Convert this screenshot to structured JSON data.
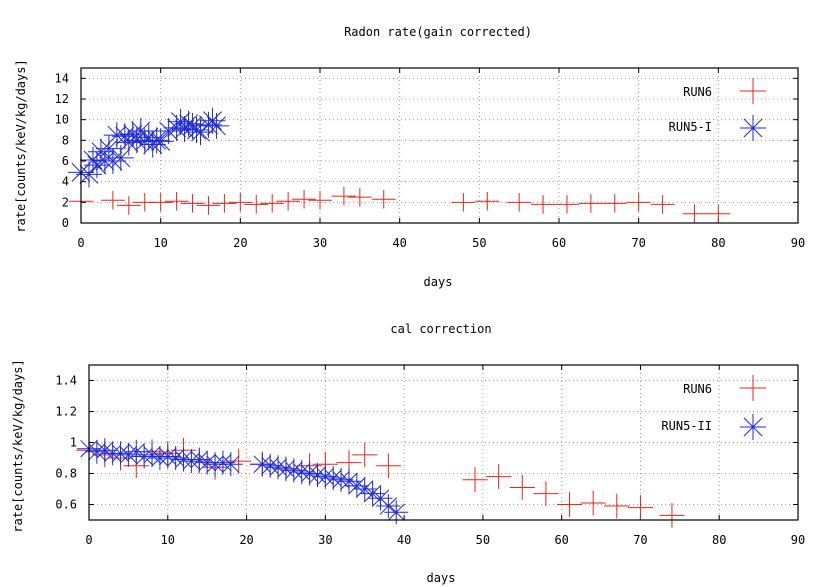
{
  "colors": {
    "run6": "#e8261e",
    "run5": "#1f2bd6",
    "axis": "#000000",
    "grid": "#9a9a9a"
  },
  "chart_data": [
    {
      "type": "scatter",
      "title": "Radon rate(gain corrected)",
      "xlabel": "days",
      "ylabel": "rate[counts/keV/kg/days]",
      "xlim": [
        0,
        90
      ],
      "ylim": [
        0,
        15
      ],
      "xticks": [
        0,
        10,
        20,
        30,
        40,
        50,
        60,
        70,
        80,
        90
      ],
      "yticks": [
        0,
        2,
        4,
        6,
        8,
        10,
        12,
        14
      ],
      "grid": true,
      "legend": "top-right",
      "series": [
        {
          "name": "RUN6",
          "marker": "plus",
          "x": [
            0,
            4,
            6,
            8,
            10,
            12,
            14,
            16,
            18,
            20,
            22,
            24,
            26,
            28,
            30,
            33,
            35,
            38,
            48,
            51,
            55,
            58,
            61,
            64,
            67,
            70,
            73,
            77,
            80
          ],
          "y": [
            2.1,
            2.2,
            1.7,
            2.0,
            2.0,
            2.1,
            1.9,
            1.7,
            1.9,
            2.0,
            1.8,
            1.9,
            2.1,
            2.3,
            2.2,
            2.6,
            2.5,
            2.3,
            2.0,
            2.1,
            2.0,
            1.8,
            1.8,
            1.9,
            1.9,
            2.0,
            1.8,
            0.9,
            0.9
          ],
          "xerr": 1.5,
          "yerr": 0.9
        },
        {
          "name": "RUN5-I",
          "marker": "star",
          "x": [
            0,
            1,
            1.5,
            2,
            2.5,
            3,
            3.5,
            4,
            4.5,
            5,
            5.5,
            6,
            6.5,
            7,
            7.5,
            8,
            8.5,
            9,
            9.5,
            10,
            11,
            12,
            12.5,
            13,
            13.5,
            14,
            14.5,
            15,
            16,
            16.5,
            17
          ],
          "y": [
            4.9,
            4.7,
            6.1,
            5.6,
            6.9,
            6.0,
            7.2,
            6.0,
            8.5,
            6.3,
            8.4,
            7.8,
            8.6,
            8.0,
            8.9,
            7.9,
            8.3,
            7.6,
            8.0,
            7.9,
            8.9,
            9.2,
            9.8,
            9.1,
            9.6,
            9.4,
            9.0,
            8.8,
            9.5,
            9.9,
            9.4
          ]
        }
      ]
    },
    {
      "type": "scatter",
      "title": "cal correction",
      "xlabel": "days",
      "ylabel": "rate[counts/keV/kg/days]",
      "xlim": [
        0,
        90
      ],
      "ylim": [
        0.5,
        1.5
      ],
      "xticks": [
        0,
        10,
        20,
        30,
        40,
        50,
        60,
        70,
        80,
        90
      ],
      "yticks": [
        0.6,
        0.8,
        1,
        1.2,
        1.4
      ],
      "grid": true,
      "legend": "top-right",
      "series": [
        {
          "name": "RUN6",
          "marker": "plus",
          "x": [
            0,
            2,
            4,
            6,
            8,
            10,
            12,
            14,
            16,
            19,
            22,
            25,
            28,
            30,
            33,
            35,
            38,
            49,
            52,
            55,
            58,
            61,
            64,
            67,
            70,
            74
          ],
          "y": [
            0.95,
            0.92,
            0.9,
            0.85,
            0.94,
            0.93,
            0.95,
            0.88,
            0.84,
            0.88,
            0.86,
            0.83,
            0.85,
            0.86,
            0.87,
            0.92,
            0.85,
            0.76,
            0.78,
            0.71,
            0.67,
            0.6,
            0.61,
            0.59,
            0.58,
            0.53
          ],
          "xerr": 1.6,
          "yerr": 0.08
        },
        {
          "name": "RUN5-II",
          "marker": "star",
          "x": [
            0,
            1,
            2,
            3,
            4,
            5,
            6,
            7,
            8,
            9,
            10,
            11,
            12,
            13,
            14,
            15,
            16,
            17,
            18,
            22,
            23,
            24,
            25,
            26,
            27,
            28,
            29,
            30,
            31,
            32,
            33,
            34,
            35,
            36,
            37,
            38,
            39
          ],
          "y": [
            0.96,
            0.94,
            0.95,
            0.93,
            0.93,
            0.92,
            0.94,
            0.91,
            0.92,
            0.9,
            0.91,
            0.9,
            0.89,
            0.88,
            0.89,
            0.87,
            0.86,
            0.87,
            0.86,
            0.86,
            0.85,
            0.84,
            0.83,
            0.82,
            0.81,
            0.8,
            0.79,
            0.78,
            0.77,
            0.76,
            0.75,
            0.72,
            0.7,
            0.67,
            0.64,
            0.59,
            0.55
          ]
        }
      ]
    }
  ]
}
